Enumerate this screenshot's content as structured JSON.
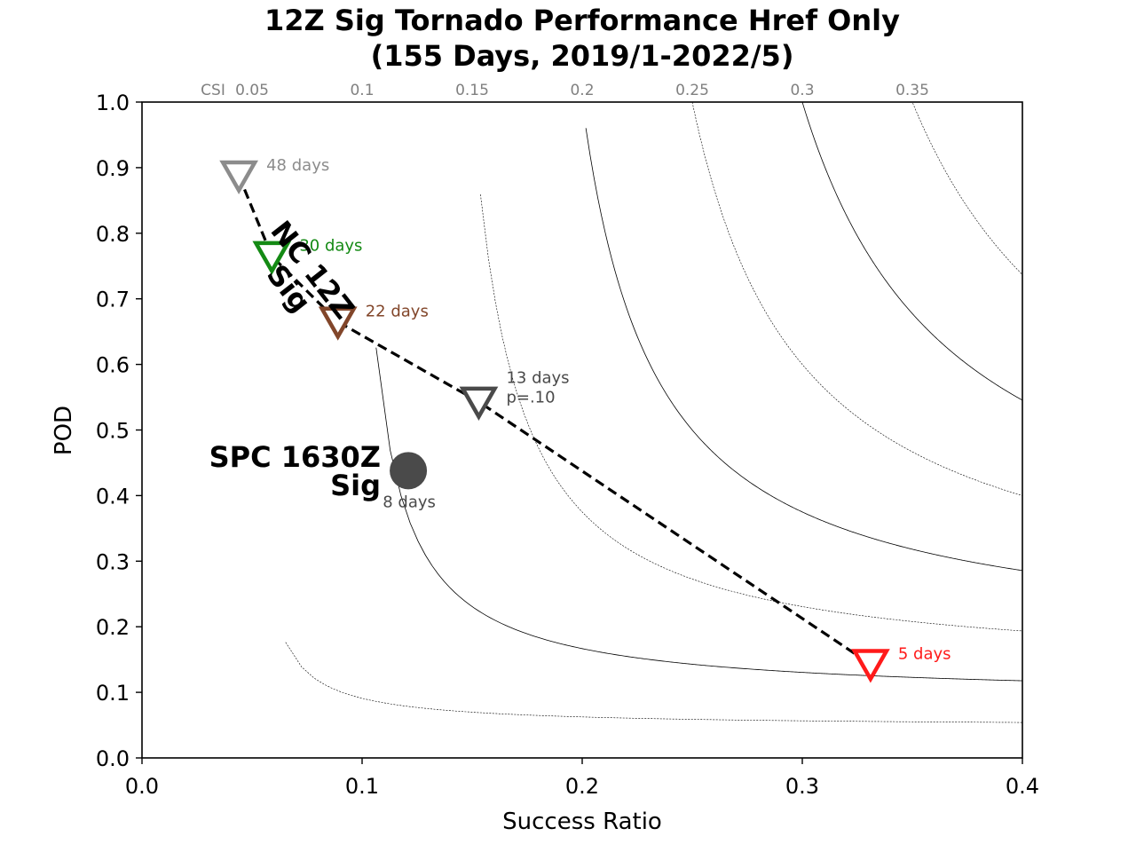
{
  "chart_data": {
    "type": "scatter",
    "title": [
      "12Z Sig Tornado Performance Href Only",
      "(155 Days, 2019/1-2022/5)"
    ],
    "xlabel": "Success Ratio",
    "ylabel": "POD",
    "xlim": [
      0.0,
      0.4
    ],
    "ylim": [
      0.0,
      1.0
    ],
    "x_ticks": [
      0.0,
      0.1,
      0.2,
      0.3,
      0.4
    ],
    "x_tick_labels": [
      "0.0",
      "0.1",
      "0.2",
      "0.3",
      "0.4"
    ],
    "y_ticks": [
      0.0,
      0.1,
      0.2,
      0.3,
      0.4,
      0.5,
      0.6,
      0.7,
      0.8,
      0.9,
      1.0
    ],
    "y_tick_labels": [
      "0.0",
      "0.1",
      "0.2",
      "0.3",
      "0.4",
      "0.5",
      "0.6",
      "0.7",
      "0.8",
      "0.9",
      "1.0"
    ],
    "csi_contours": {
      "prefix": "CSI",
      "values": [
        0.05,
        0.1,
        0.15,
        0.2,
        0.25,
        0.3,
        0.35
      ],
      "labels": [
        "0.05",
        "0.1",
        "0.15",
        "0.2",
        "0.25",
        "0.3",
        "0.35"
      ]
    },
    "series": [
      {
        "label_lines": [
          "NC 12Z",
          "Sig"
        ],
        "line_style": "dashed",
        "line_color": "#000000",
        "marker": "triangle-down-open",
        "points": [
          {
            "x": 0.044,
            "y": 0.888,
            "label": [
              "48 days"
            ],
            "color": "#8c8c8c"
          },
          {
            "x": 0.059,
            "y": 0.765,
            "label": [
              "30 days"
            ],
            "color": "#148a14"
          },
          {
            "x": 0.089,
            "y": 0.665,
            "label": [
              "22 days"
            ],
            "color": "#82462a"
          },
          {
            "x": 0.153,
            "y": 0.543,
            "label": [
              "13 days",
              "p=.10"
            ],
            "color": "#4a4a4a"
          },
          {
            "x": 0.331,
            "y": 0.143,
            "label": [
              "5 days"
            ],
            "color": "#ff1a1a"
          }
        ]
      },
      {
        "label_lines": [
          "SPC 1630Z",
          "Sig"
        ],
        "marker": "circle",
        "points": [
          {
            "x": 0.121,
            "y": 0.438,
            "label": [
              "8 days"
            ],
            "color": "#4a4a4a"
          }
        ]
      }
    ]
  }
}
